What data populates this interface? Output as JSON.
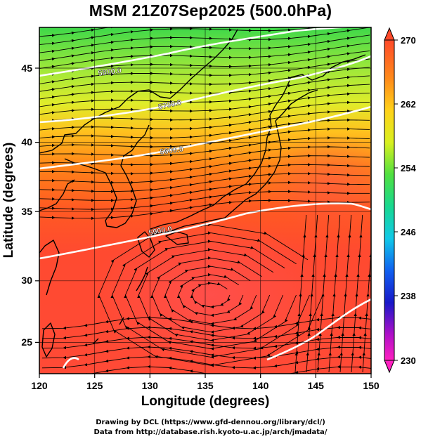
{
  "title": "MSM 21Z07Sep2025 (500.0hPa)",
  "footer": {
    "line1": "Drawing by DCL (https://www.gfd-dennou.org/library/dcl/)",
    "line2": "Data from http://database.rish.kyoto-u.ac.jp/arch/jmadata/"
  },
  "map": {
    "xlabel": "Longitude (degrees)",
    "ylabel": "Latitude  (degrees)",
    "lon_range": [
      120,
      150
    ],
    "lat_range": [
      22.5,
      47.5
    ],
    "lon_ticks": [
      "120",
      "125",
      "130",
      "135",
      "140",
      "145",
      "150"
    ],
    "lat_ticks": [
      "25",
      "30",
      "35",
      "40",
      "45"
    ],
    "grid": true,
    "contour_labels": [
      "5800.0",
      "5700.0",
      "5600.0",
      "5900.0"
    ],
    "colorbar": {
      "min": 230,
      "max": 270,
      "tick_labels": [
        "270",
        "262",
        "254",
        "246",
        "238",
        "230"
      ]
    }
  }
}
